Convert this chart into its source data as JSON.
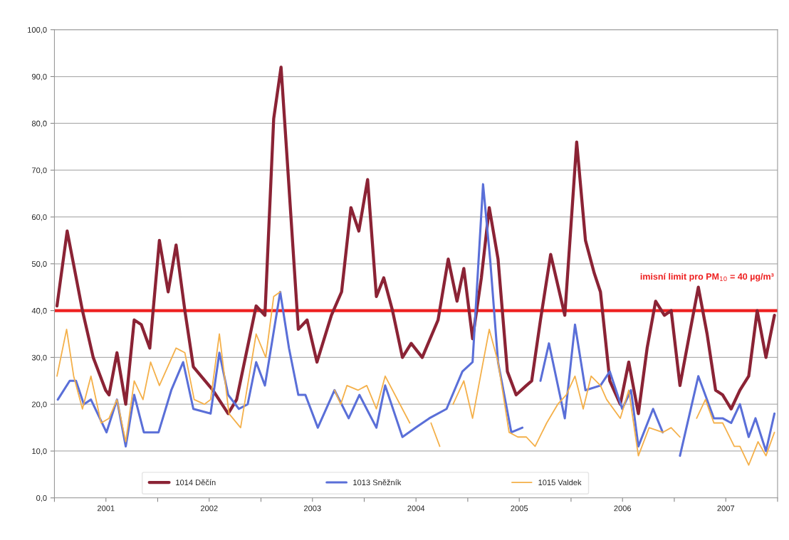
{
  "chart_data": {
    "type": "line",
    "xlim": [
      "2001-01-01",
      "2008-01-01"
    ],
    "xticks": [
      {
        "value": "2001-01-01",
        "label": null
      },
      {
        "value": "2001-07-02",
        "label": "2001"
      },
      {
        "value": "2002-01-01",
        "label": null
      },
      {
        "value": "2002-07-02",
        "label": "2002"
      },
      {
        "value": "2003-01-01",
        "label": null
      },
      {
        "value": "2003-07-02",
        "label": "2003"
      },
      {
        "value": "2004-01-01",
        "label": null
      },
      {
        "value": "2004-07-02",
        "label": "2004"
      },
      {
        "value": "2005-01-01",
        "label": null
      },
      {
        "value": "2005-07-02",
        "label": "2005"
      },
      {
        "value": "2006-01-01",
        "label": null
      },
      {
        "value": "2006-07-02",
        "label": "2006"
      },
      {
        "value": "2007-01-01",
        "label": null
      },
      {
        "value": "2007-07-02",
        "label": "2007"
      },
      {
        "value": "2008-01-01",
        "label": null
      }
    ],
    "ylim": [
      0,
      100
    ],
    "yticks": [
      {
        "value": 0,
        "label": "0,0"
      },
      {
        "value": 10,
        "label": "10,0"
      },
      {
        "value": 20,
        "label": "20,0"
      },
      {
        "value": 30,
        "label": "30,0"
      },
      {
        "value": 40,
        "label": "40,0"
      },
      {
        "value": 50,
        "label": "50,0"
      },
      {
        "value": 60,
        "label": "60,0"
      },
      {
        "value": 70,
        "label": "70,0"
      },
      {
        "value": 80,
        "label": "80,0"
      },
      {
        "value": 90,
        "label": "90,0"
      },
      {
        "value": 100,
        "label": "100,0"
      }
    ],
    "grid": "y",
    "legend": "bottom",
    "line_style": "solid",
    "ref_lines": [
      {
        "axis": "y",
        "value": 40,
        "label": "imisní limit pro PM$_{10}$ = 40 µg/m³",
        "color": "#ee2020"
      }
    ],
    "series": [
      {
        "name": "1014 Děčín",
        "color": "#8b2335",
        "x": [
          "2001-01-10",
          "2001-02-15",
          "2001-04-10",
          "2001-05-18",
          "2001-07-01",
          "2001-07-13",
          "2001-08-10",
          "2001-09-10",
          "2001-10-10",
          "2001-11-04",
          "2001-12-04",
          "2002-01-07",
          "2002-02-07",
          "2002-03-07",
          "2002-04-07",
          "2002-05-07",
          "2002-07-15",
          "2002-09-07",
          "2002-10-07",
          "2002-12-15",
          "2003-01-15",
          "2003-02-15",
          "2003-03-13",
          "2003-04-04",
          "2003-05-13",
          "2003-06-13",
          "2003-07-18",
          "2003-09-07",
          "2003-10-13",
          "2003-11-15",
          "2003-12-13",
          "2004-01-13",
          "2004-02-13",
          "2004-03-10",
          "2004-04-10",
          "2004-05-15",
          "2004-06-15",
          "2004-07-24",
          "2004-09-18",
          "2004-10-24",
          "2004-11-24",
          "2004-12-18",
          "2005-01-18",
          "2005-02-18",
          "2005-03-18",
          "2005-04-18",
          "2005-05-21",
          "2005-06-21",
          "2005-07-27",
          "2005-08-15",
          "2005-09-15",
          "2005-10-21",
          "2005-12-10",
          "2006-01-21",
          "2006-02-21",
          "2006-03-24",
          "2006-04-15",
          "2006-05-18",
          "2006-06-24",
          "2006-07-24",
          "2006-08-27",
          "2006-09-27",
          "2006-10-27",
          "2006-11-27",
          "2006-12-21",
          "2007-01-21",
          "2007-02-27",
          "2007-03-27",
          "2007-04-27",
          "2007-05-27",
          "2007-06-21",
          "2007-07-21",
          "2007-08-21",
          "2007-09-21",
          "2007-10-21",
          "2007-11-21",
          "2007-12-21"
        ],
        "values": [
          41,
          57,
          40,
          30,
          23,
          22,
          31,
          20,
          38,
          37,
          32,
          55,
          44,
          54,
          40,
          28,
          23,
          18,
          21,
          41,
          39,
          81,
          92,
          72,
          36,
          38,
          29,
          39,
          44,
          62,
          57,
          68,
          43,
          47,
          40,
          30,
          33,
          30,
          38,
          51,
          42,
          49,
          34,
          47,
          62,
          51,
          27,
          22,
          24,
          25,
          38,
          52,
          39,
          76,
          55,
          48,
          44,
          25,
          20,
          29,
          18,
          32,
          42,
          39,
          40,
          24,
          36,
          45,
          35,
          23,
          22,
          19,
          23,
          26,
          40,
          30,
          39
        ]
      },
      {
        "name": "1013 Sněžník",
        "color": "#5a6fd8",
        "x": [
          "2001-01-13",
          "2001-02-24",
          "2001-03-18",
          "2001-04-15",
          "2001-05-10",
          "2001-07-04",
          "2001-08-10",
          "2001-09-10",
          "2001-10-10",
          "2001-11-13",
          "2002-01-04",
          "2002-02-18",
          "2002-04-01",
          "2002-05-07",
          "2002-07-07",
          "2002-08-07",
          "2002-09-07",
          "2002-10-15",
          "2002-11-15",
          "2002-12-15",
          "2003-01-15",
          "2003-03-10",
          "2003-04-10",
          "2003-05-13",
          "2003-06-07",
          "2003-07-21",
          "2003-09-18",
          "2003-11-07",
          "2003-12-15",
          "2004-02-13",
          "2004-03-15",
          "2004-05-15",
          "2004-07-01",
          "2004-08-18",
          "2004-10-18",
          "2004-12-13",
          "2005-01-18",
          "2005-02-24",
          "2005-03-21",
          "2005-04-18",
          "2005-06-04",
          "2005-07-13",
          "2005-08-15",
          "2005-09-15",
          "2005-10-15",
          "2005-12-10",
          "2006-01-15",
          "2006-02-21",
          "2006-04-15",
          "2006-05-18",
          "2006-07-01",
          "2006-08-01",
          "2006-08-27",
          "2006-10-18",
          "2006-11-21",
          "2006-12-21",
          "2007-01-21",
          "2007-03-27",
          "2007-05-21",
          "2007-06-21",
          "2007-07-21",
          "2007-08-21",
          "2007-09-21",
          "2007-10-15",
          "2007-11-21",
          "2007-12-21"
        ],
        "values": [
          21,
          25,
          25,
          20,
          21,
          14,
          21,
          11,
          22,
          14,
          14,
          23,
          29,
          19,
          18,
          31,
          22,
          19,
          20,
          29,
          24,
          44,
          32,
          22,
          22,
          15,
          23,
          17,
          22,
          15,
          24,
          13,
          15,
          17,
          19,
          27,
          29,
          67,
          51,
          29,
          14,
          15,
          null,
          25,
          33,
          17,
          37,
          23,
          24,
          27,
          19,
          23,
          11,
          19,
          14,
          null,
          9,
          26,
          17,
          17,
          16,
          20,
          13,
          17,
          10,
          18
        ]
      },
      {
        "name": "1015 Valdek",
        "color": "#f4b04a",
        "x": [
          "2001-01-10",
          "2001-02-13",
          "2001-03-10",
          "2001-04-10",
          "2001-05-10",
          "2001-06-15",
          "2001-07-13",
          "2001-08-10",
          "2001-09-10",
          "2001-10-10",
          "2001-11-10",
          "2001-12-07",
          "2002-01-07",
          "2002-03-07",
          "2002-04-07",
          "2002-05-10",
          "2002-06-15",
          "2002-07-07",
          "2002-08-07",
          "2002-09-10",
          "2002-10-21",
          "2002-12-15",
          "2003-01-18",
          "2003-02-15",
          "2003-03-10",
          "2003-06-01",
          "2003-09-18",
          "2003-10-10",
          "2003-11-01",
          "2003-12-10",
          "2004-01-10",
          "2004-02-13",
          "2004-03-15",
          "2004-06-10",
          "2004-07-15",
          "2004-08-24",
          "2004-09-24",
          "2004-10-15",
          "2004-11-10",
          "2004-12-18",
          "2005-01-18",
          "2005-03-18",
          "2005-04-18",
          "2005-05-27",
          "2005-06-27",
          "2005-07-27",
          "2005-08-27",
          "2005-10-07",
          "2005-11-15",
          "2005-12-15",
          "2006-01-15",
          "2006-02-13",
          "2006-03-13",
          "2006-04-15",
          "2006-05-07",
          "2006-06-24",
          "2006-07-24",
          "2006-08-27",
          "2006-10-04",
          "2006-11-21",
          "2006-12-21",
          "2007-01-21",
          "2007-02-21",
          "2007-03-21",
          "2007-04-21",
          "2007-05-21",
          "2007-06-21",
          "2007-08-01",
          "2007-08-21",
          "2007-09-21",
          "2007-10-24",
          "2007-11-21",
          "2007-12-21"
        ],
        "values": [
          26,
          36,
          26,
          19,
          26,
          16,
          17,
          21,
          12,
          25,
          21,
          29,
          24,
          32,
          31,
          21,
          20,
          21,
          35,
          18,
          15,
          35,
          30,
          43,
          44,
          null,
          23,
          20,
          24,
          23,
          24,
          19,
          26,
          16,
          null,
          16,
          11,
          null,
          20,
          25,
          17,
          36,
          29,
          14,
          13,
          13,
          11,
          16,
          20,
          22,
          26,
          19,
          26,
          24,
          21,
          17,
          23,
          9,
          15,
          14,
          15,
          13,
          null,
          17,
          21,
          16,
          16,
          11,
          11,
          7,
          12,
          9,
          14
        ]
      }
    ]
  }
}
